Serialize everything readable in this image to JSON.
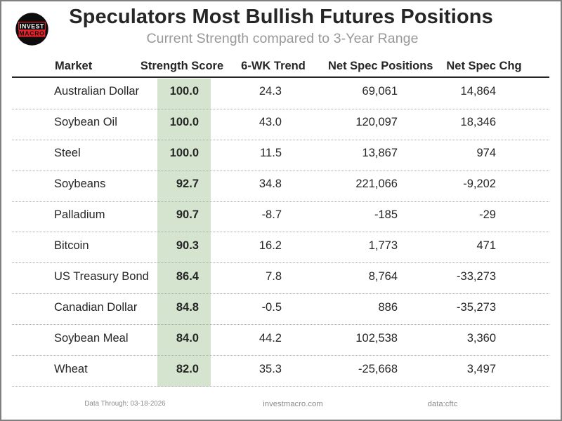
{
  "header": {
    "title": "Speculators Most Bullish Futures Positions",
    "subtitle": "Current Strength compared to 3-Year Range"
  },
  "logo": {
    "line1": "INVEST",
    "line2": "MACRO"
  },
  "table": {
    "columns": {
      "market": "Market",
      "score": "Strength Score",
      "trend": "6-WK Trend",
      "positions": "Net Spec Positions",
      "change": "Net Spec Chg"
    },
    "rows": [
      {
        "market": "Australian Dollar",
        "score": "100.0",
        "trend": "24.3",
        "positions": "69,061",
        "change": "14,864"
      },
      {
        "market": "Soybean Oil",
        "score": "100.0",
        "trend": "43.0",
        "positions": "120,097",
        "change": "18,346"
      },
      {
        "market": "Steel",
        "score": "100.0",
        "trend": "11.5",
        "positions": "13,867",
        "change": "974"
      },
      {
        "market": "Soybeans",
        "score": "92.7",
        "trend": "34.8",
        "positions": "221,066",
        "change": "-9,202"
      },
      {
        "market": "Palladium",
        "score": "90.7",
        "trend": "-8.7",
        "positions": "-185",
        "change": "-29"
      },
      {
        "market": "Bitcoin",
        "score": "90.3",
        "trend": "16.2",
        "positions": "1,773",
        "change": "471"
      },
      {
        "market": "US Treasury Bond",
        "score": "86.4",
        "trend": "7.8",
        "positions": "8,764",
        "change": "-33,273"
      },
      {
        "market": "Canadian Dollar",
        "score": "84.8",
        "trend": "-0.5",
        "positions": "886",
        "change": "-35,273"
      },
      {
        "market": "Soybean Meal",
        "score": "84.0",
        "trend": "44.2",
        "positions": "102,538",
        "change": "3,360"
      },
      {
        "market": "Wheat",
        "score": "82.0",
        "trend": "35.3",
        "positions": "-25,668",
        "change": "3,497"
      }
    ]
  },
  "footer": {
    "data_through": "Data Through: 03-18-2026",
    "website": "investmacro.com",
    "source": "data:cftc"
  },
  "colors": {
    "score_highlight": "#d4e4ce",
    "text": "#262626",
    "subtitle_gray": "#989898",
    "footer_gray": "#666666",
    "dotted_line": "#b2b2b2",
    "outer_border": "#808080",
    "logo_red": "#e4222b",
    "logo_black": "#0d0d0d"
  },
  "chart_data": {
    "type": "table",
    "title": "Speculators Most Bullish Futures Positions",
    "subtitle": "Current Strength compared to 3-Year Range",
    "columns": [
      "Market",
      "Strength Score",
      "6-WK Trend",
      "Net Spec Positions",
      "Net Spec Chg"
    ],
    "rows": [
      [
        "Australian Dollar",
        100.0,
        24.3,
        69061,
        14864
      ],
      [
        "Soybean Oil",
        100.0,
        43.0,
        120097,
        18346
      ],
      [
        "Steel",
        100.0,
        11.5,
        13867,
        974
      ],
      [
        "Soybeans",
        92.7,
        34.8,
        221066,
        -9202
      ],
      [
        "Palladium",
        90.7,
        -8.7,
        -185,
        -29
      ],
      [
        "Bitcoin",
        90.3,
        16.2,
        1773,
        471
      ],
      [
        "US Treasury Bond",
        86.4,
        7.8,
        8764,
        -33273
      ],
      [
        "Canadian Dollar",
        84.8,
        -0.5,
        886,
        -35273
      ],
      [
        "Soybean Meal",
        84.0,
        44.2,
        102538,
        3360
      ],
      [
        "Wheat",
        82.0,
        35.3,
        -25668,
        3497
      ]
    ],
    "highlight_column": "Strength Score",
    "notes": [
      "Data Through: 03-18-2026",
      "investmacro.com",
      "data:cftc"
    ],
    "layout": {
      "grid": "dotted horizontal row separators",
      "legend": "none"
    }
  }
}
